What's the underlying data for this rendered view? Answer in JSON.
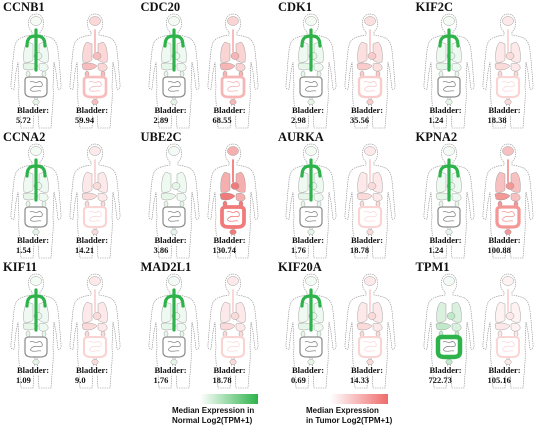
{
  "organ_label": "Bladder:",
  "colors": {
    "normal": "#2db34a",
    "tumor": "#ef6b6b",
    "outline": "#8a8a8a",
    "normal_organ_fill": "#eef7ee",
    "tumor_organ_fill": "#fbe3e3"
  },
  "panels": [
    {
      "gene": "CCNB1",
      "normal": "5.72",
      "tumor": "59.94",
      "tumor_level": 0.45,
      "normal_level": 0.05,
      "normal_highlight": "trachea"
    },
    {
      "gene": "CDC20",
      "normal": "2.89",
      "tumor": "68.55",
      "tumor_level": 0.5,
      "normal_level": 0.05,
      "normal_highlight": "trachea"
    },
    {
      "gene": "CDK1",
      "normal": "2.98",
      "tumor": "35.56",
      "tumor_level": 0.35,
      "normal_level": 0.05,
      "normal_highlight": "trachea"
    },
    {
      "gene": "KIF2C",
      "normal": "1.24",
      "tumor": "18.38",
      "tumor_level": 0.25,
      "normal_level": 0.05,
      "normal_highlight": "trachea"
    },
    {
      "gene": "CCNA2",
      "normal": "1.54",
      "tumor": "14.21",
      "tumor_level": 0.25,
      "normal_level": 0.05,
      "normal_highlight": "trachea"
    },
    {
      "gene": "UBE2C",
      "normal": "3.86",
      "tumor": "130.74",
      "tumor_level": 0.9,
      "normal_level": 0.02,
      "normal_highlight": "none"
    },
    {
      "gene": "AURKA",
      "normal": "1.76",
      "tumor": "18.78",
      "tumor_level": 0.25,
      "normal_level": 0.05,
      "normal_highlight": "trachea"
    },
    {
      "gene": "KPNA2",
      "normal": "1.24",
      "tumor": "100.88",
      "tumor_level": 0.7,
      "normal_level": 0.1,
      "normal_highlight": "trachea"
    },
    {
      "gene": "KIF11",
      "normal": "1.09",
      "tumor": "9.0",
      "tumor_level": 0.25,
      "normal_level": 0.05,
      "normal_highlight": "trachea"
    },
    {
      "gene": "MAD2L1",
      "normal": "1.76",
      "tumor": "18.78",
      "tumor_level": 0.25,
      "normal_level": 0.05,
      "normal_highlight": "trachea"
    },
    {
      "gene": "KIF20A",
      "normal": "0.69",
      "tumor": "14.33",
      "tumor_level": 0.25,
      "normal_level": 0.05,
      "normal_highlight": "trachea"
    },
    {
      "gene": "TPM1",
      "normal": "722.73",
      "tumor": "105.16",
      "tumor_level": 0.15,
      "normal_level": 0.3,
      "normal_highlight": "colon"
    }
  ],
  "legend": {
    "normal_line1": "Median Expression in",
    "normal_line2": "Normal  Log2(TPM+1)",
    "tumor_line1": "Median Expression",
    "tumor_line2": "in Tumor  Log2(TPM+1)"
  }
}
